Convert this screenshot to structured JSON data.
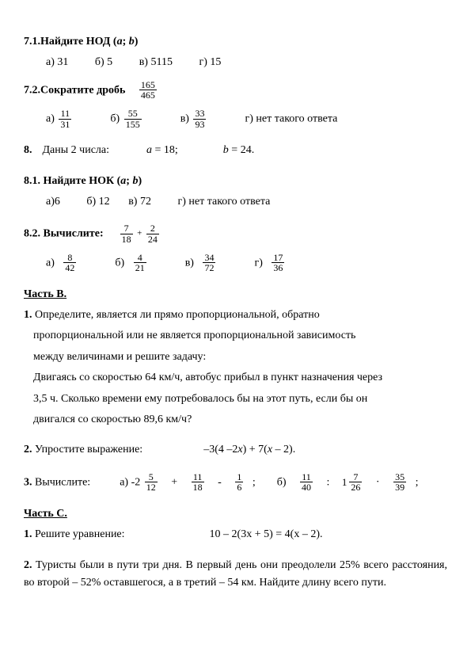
{
  "q71": {
    "title": "7.1.Найдите НОД (",
    "var_a": "a",
    "sep": "; ",
    "var_b": "b",
    "close": ")",
    "opt_a": "а) 31",
    "opt_b": "б) 5",
    "opt_v": "в) 5115",
    "opt_g": "г) 15"
  },
  "q72": {
    "title": "7.2.Сократите дробь",
    "main_num": "165",
    "main_den": "465",
    "a": "а)",
    "a_num": "11",
    "a_den": "31",
    "b": "б)",
    "b_num": "55",
    "b_den": "155",
    "v": "в)",
    "v_num": "33",
    "v_den": "93",
    "g": "г) нет такого ответа"
  },
  "q8": {
    "title": "8.",
    "text": "Даны 2 числа:",
    "a_var": "a",
    "a_eq": " = 18;",
    "b_var": "b",
    "b_eq": " = 24."
  },
  "q81": {
    "title": "8.1.",
    "text": " Найдите НОК (",
    "var_a": "a",
    "sep": "; ",
    "var_b": "b",
    "close": ")",
    "opt_a": "а)6",
    "opt_b": "б) 12",
    "opt_v": "в) 72",
    "opt_g": "г) нет такого ответа"
  },
  "q82": {
    "title": "8.2.",
    "text": " Вычислите:",
    "f1_num": "7",
    "f1_den": "18",
    "plus": "+",
    "f2_num": "2",
    "f2_den": "24",
    "a": "а)",
    "a_num": "8",
    "a_den": "42",
    "b": "б)",
    "b_num": "4",
    "b_den": "21",
    "v": "в)",
    "v_num": "34",
    "v_den": "72",
    "g": "г)",
    "g_num": "17",
    "g_den": "36"
  },
  "partB": {
    "title": "Часть В.",
    "p1_num": "1.",
    "p1_l1": " Определите, является ли прямо пропорциональной, обратно",
    "p1_l2": "пропорциональной или не является пропорциональной зависимость",
    "p1_l3": "между величинами и решите задачу:",
    "p1_l4": "Двигаясь со скоростью 64 км/ч, автобус прибыл в пункт назначения через",
    "p1_l5": "3,5 ч. Сколько времени ему потребовалось бы на этот путь, если бы он",
    "p1_l6": "двигался со скоростью 89,6 км/ч?",
    "p2_num": "2.",
    "p2_text": " Упростите выражение:",
    "p2_expr": "–3(4 –2",
    "p2_x1": "x",
    "p2_mid": ") + 7(",
    "p2_x2": "x",
    "p2_end": " – 2).",
    "p3_num": "3.",
    "p3_text": " Вычислите:",
    "p3_a": "а) -2",
    "p3_a_num": "5",
    "p3_a_den": "12",
    "p3_plus": "+",
    "p3_f2_num": "11",
    "p3_f2_den": "18",
    "p3_minus": "-",
    "p3_f3_num": "1",
    "p3_f3_den": "6",
    "p3_semi": ";",
    "p3_b": "б)",
    "p3_f4_num": "11",
    "p3_f4_den": "40",
    "p3_div": ":",
    "p3_b_int": "1",
    "p3_f5_num": "7",
    "p3_f5_den": "26",
    "p3_dot": "·",
    "p3_f6_num": "35",
    "p3_f6_den": "39"
  },
  "partC": {
    "title": "Часть С.",
    "p1_num": "1.",
    "p1_text": " Решите уравнение:",
    "p1_expr": "10 – 2(3x + 5) = 4(x – 2).",
    "p2_num": "2.",
    "p2_text": " Туристы были в пути три дня. В первый день они преодолели 25% всего расстояния, во второй – 52% оставшегося, а в третий – 54 км. Найдите длину всего пути."
  }
}
